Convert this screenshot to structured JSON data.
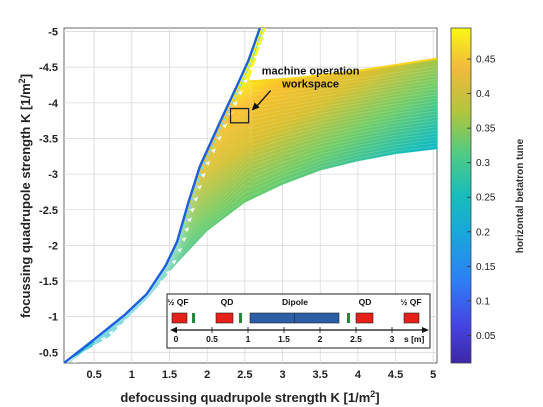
{
  "chart_data": {
    "type": "area",
    "xlabel_main": "defocussing quadrupole strength K [1/m",
    "xlabel_sup": "2",
    "xlabel_end": "]",
    "ylabel_main": "focussing quadrupole strength K [1/m",
    "ylabel_sup": "2",
    "ylabel_end": "]",
    "xlim": [
      0.1,
      5.05
    ],
    "ylim": [
      -0.35,
      -5.05
    ],
    "xticks": [
      "0.5",
      "1",
      "1.5",
      "2",
      "2.5",
      "3",
      "3.5",
      "4",
      "4.5",
      "5"
    ],
    "yticks": [
      "-0.5",
      "-1",
      "-1.5",
      "-2",
      "-2.5",
      "-3",
      "-3.5",
      "-4",
      "-4.5",
      "-5"
    ],
    "grid": true,
    "upper_boundary": [
      [
        0.1,
        -0.35
      ],
      [
        0.5,
        -0.68
      ],
      [
        0.9,
        -1.02
      ],
      [
        1.2,
        -1.32
      ],
      [
        1.45,
        -1.72
      ],
      [
        1.6,
        -2.05
      ],
      [
        1.75,
        -2.6
      ],
      [
        1.9,
        -3.1
      ],
      [
        2.05,
        -3.45
      ],
      [
        2.2,
        -3.8
      ],
      [
        2.4,
        -4.25
      ],
      [
        2.55,
        -4.6
      ],
      [
        2.7,
        -5.05
      ]
    ],
    "lower_boundary": [
      [
        0.1,
        -0.35
      ],
      [
        0.7,
        -0.72
      ],
      [
        1.2,
        -1.25
      ],
      [
        1.6,
        -1.75
      ],
      [
        2.0,
        -2.2
      ],
      [
        2.5,
        -2.6
      ],
      [
        3.0,
        -2.85
      ],
      [
        3.5,
        -3.05
      ],
      [
        4.0,
        -3.18
      ],
      [
        4.5,
        -3.28
      ],
      [
        5.05,
        -3.35
      ]
    ],
    "right_top_boundary": [
      [
        2.55,
        -4.3
      ],
      [
        3.2,
        -4.35
      ],
      [
        4.0,
        -4.45
      ],
      [
        5.05,
        -4.62
      ]
    ],
    "workspace_box": {
      "x": 2.43,
      "y": -3.82,
      "half_width_x": 0.12,
      "half_height_y": 0.1
    },
    "colorbar": {
      "label": "horizontal betatron tune",
      "ticks": [
        "0.05",
        "0.1",
        "0.15",
        "0.2",
        "0.25",
        "0.3",
        "0.35",
        "0.4",
        "0.45"
      ],
      "range": [
        0.01,
        0.495
      ],
      "colormap": "parula"
    },
    "annotation": {
      "line1": "machine operation",
      "line2": "workspace"
    }
  },
  "lattice_inset": {
    "labels": [
      "½ QF",
      "QD",
      "Dipole",
      "QD",
      "½ QF"
    ],
    "scale_ticks": [
      "0",
      "0.5",
      "1",
      "1.5",
      "2",
      "2.5",
      "3"
    ],
    "scale_unit": "s [m]",
    "element_colors": {
      "quad": "#e8201a",
      "dipole": "#2c5fa8",
      "sextupole": "#1f8a3a"
    }
  }
}
